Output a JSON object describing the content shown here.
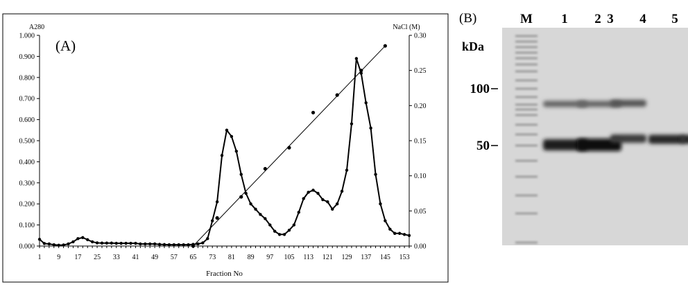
{
  "chart_data": [
    {
      "type": "line",
      "panel_label": "(A)",
      "xlabel": "Fraction No",
      "ylabel": "A280",
      "y2label": "NaCl (M)",
      "xlim": [
        1,
        155
      ],
      "ylim": [
        0,
        1.0
      ],
      "y2lim": [
        0,
        0.3
      ],
      "xticks": [
        1,
        9,
        17,
        25,
        33,
        41,
        49,
        57,
        65,
        73,
        81,
        89,
        97,
        105,
        113,
        121,
        129,
        137,
        145,
        153
      ],
      "yticks": [
        "0.000",
        "0.100",
        "0.200",
        "0.300",
        "0.400",
        "0.500",
        "0.600",
        "0.700",
        "0.800",
        "0.900",
        "1.000"
      ],
      "y2ticks": [
        "0.00",
        "0.05",
        "0.10",
        "0.15",
        "0.20",
        "0.25",
        "0.30"
      ],
      "grid": false,
      "series": [
        {
          "axis": "left",
          "x": [
            1,
            3,
            5,
            7,
            9,
            11,
            13,
            15,
            17,
            19,
            21,
            23,
            25,
            27,
            29,
            31,
            33,
            35,
            37,
            39,
            41,
            43,
            45,
            47,
            49,
            51,
            53,
            55,
            57,
            59,
            61,
            63,
            65,
            67,
            69,
            71,
            73,
            75,
            77,
            79,
            81,
            83,
            85,
            87,
            89,
            91,
            93,
            95,
            97,
            99,
            101,
            103,
            105,
            107,
            109,
            111,
            113,
            115,
            117,
            119,
            121,
            123,
            125,
            127,
            129,
            131,
            133,
            135,
            137,
            139,
            141,
            143,
            145,
            147,
            149,
            151,
            153,
            155
          ],
          "values": [
            0.032,
            0.012,
            0.01,
            0.006,
            0.004,
            0.005,
            0.01,
            0.02,
            0.035,
            0.04,
            0.03,
            0.02,
            0.015,
            0.014,
            0.014,
            0.014,
            0.013,
            0.013,
            0.013,
            0.013,
            0.013,
            0.01,
            0.01,
            0.01,
            0.01,
            0.008,
            0.007,
            0.006,
            0.006,
            0.006,
            0.006,
            0.006,
            0.008,
            0.01,
            0.015,
            0.035,
            0.12,
            0.21,
            0.43,
            0.55,
            0.52,
            0.45,
            0.34,
            0.25,
            0.2,
            0.175,
            0.15,
            0.13,
            0.1,
            0.07,
            0.055,
            0.055,
            0.075,
            0.1,
            0.16,
            0.225,
            0.255,
            0.265,
            0.25,
            0.22,
            0.21,
            0.175,
            0.2,
            0.26,
            0.36,
            0.58,
            0.89,
            0.82,
            0.68,
            0.56,
            0.34,
            0.2,
            0.12,
            0.08,
            0.06,
            0.06,
            0.055,
            0.05
          ]
        },
        {
          "axis": "right",
          "x": [
            65,
            75,
            85,
            95,
            105,
            115,
            125,
            135,
            145
          ],
          "values": [
            0.0,
            0.04,
            0.07,
            0.11,
            0.14,
            0.19,
            0.215,
            0.25,
            0.285
          ]
        }
      ]
    }
  ],
  "gel": {
    "panel_label": "(B)",
    "kda_label": "kDa",
    "lanes": [
      "M",
      "1",
      "2",
      "3",
      "4",
      "5"
    ],
    "marker_labels": [
      {
        "text": "100",
        "kda": 100
      },
      {
        "text": "50",
        "kda": 50
      }
    ]
  }
}
